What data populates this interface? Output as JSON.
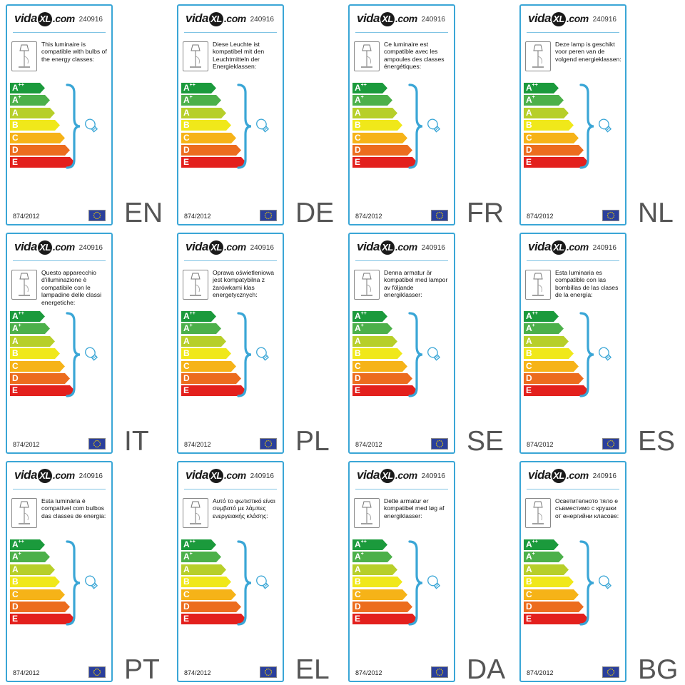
{
  "brand": {
    "name_pre": "vida",
    "name_mid": "XL",
    "name_post": ".com"
  },
  "product_code": "240916",
  "regulation": "874/2012",
  "classes": [
    {
      "base": "A",
      "sup": "++",
      "color": "#1b9a3c"
    },
    {
      "base": "A",
      "sup": "+",
      "color": "#4cb04a"
    },
    {
      "base": "A",
      "sup": "",
      "color": "#b7cf2a"
    },
    {
      "base": "B",
      "sup": "",
      "color": "#f0e81a"
    },
    {
      "base": "C",
      "sup": "",
      "color": "#f6b318"
    },
    {
      "base": "D",
      "sup": "",
      "color": "#ec6c1e"
    },
    {
      "base": "E",
      "sup": "",
      "color": "#e3201d"
    }
  ],
  "accent_color": "#3aa6d6",
  "flag_icon": "eu-flag-icon",
  "labels": [
    {
      "lang": "EN",
      "text": "This luminaire is compatible with bulbs of the energy classes:"
    },
    {
      "lang": "DE",
      "text": "Diese Leuchte ist kompatibel mit den Leuchtmitteln der Energieklassen:"
    },
    {
      "lang": "FR",
      "text": "Ce luminaire est compatible avec les ampoules des classes énergétiques:"
    },
    {
      "lang": "NL",
      "text": "Deze lamp is geschikt voor peren van de volgend energieklassen:"
    },
    {
      "lang": "IT",
      "text": "Questo apparecchio d'illuminazione è compatibile con le lampadine delle classi energetiche:"
    },
    {
      "lang": "PL",
      "text": "Oprawa oświetleniowa jest kompatybilna z żarówkami klas energetycznych:"
    },
    {
      "lang": "SE",
      "text": "Denna armatur är kompatibel med lampor av följande energiklasser:"
    },
    {
      "lang": "ES",
      "text": "Esta luminaria es compatible con las bombillas de las clases de la energía:"
    },
    {
      "lang": "PT",
      "text": "Esta luminária é compatível com bulbos das classes de energia:"
    },
    {
      "lang": "EL",
      "text": "Αυτό το φωτιστικό είναι συμβατό με λάμπες ενεργειακής κλάσης:"
    },
    {
      "lang": "DA",
      "text": "Dette armatur er kompatibel med løg af energiklasser:"
    },
    {
      "lang": "BG",
      "text": "Осветителното тяло е съвместимо с крушки от енергийни класове:"
    }
  ]
}
